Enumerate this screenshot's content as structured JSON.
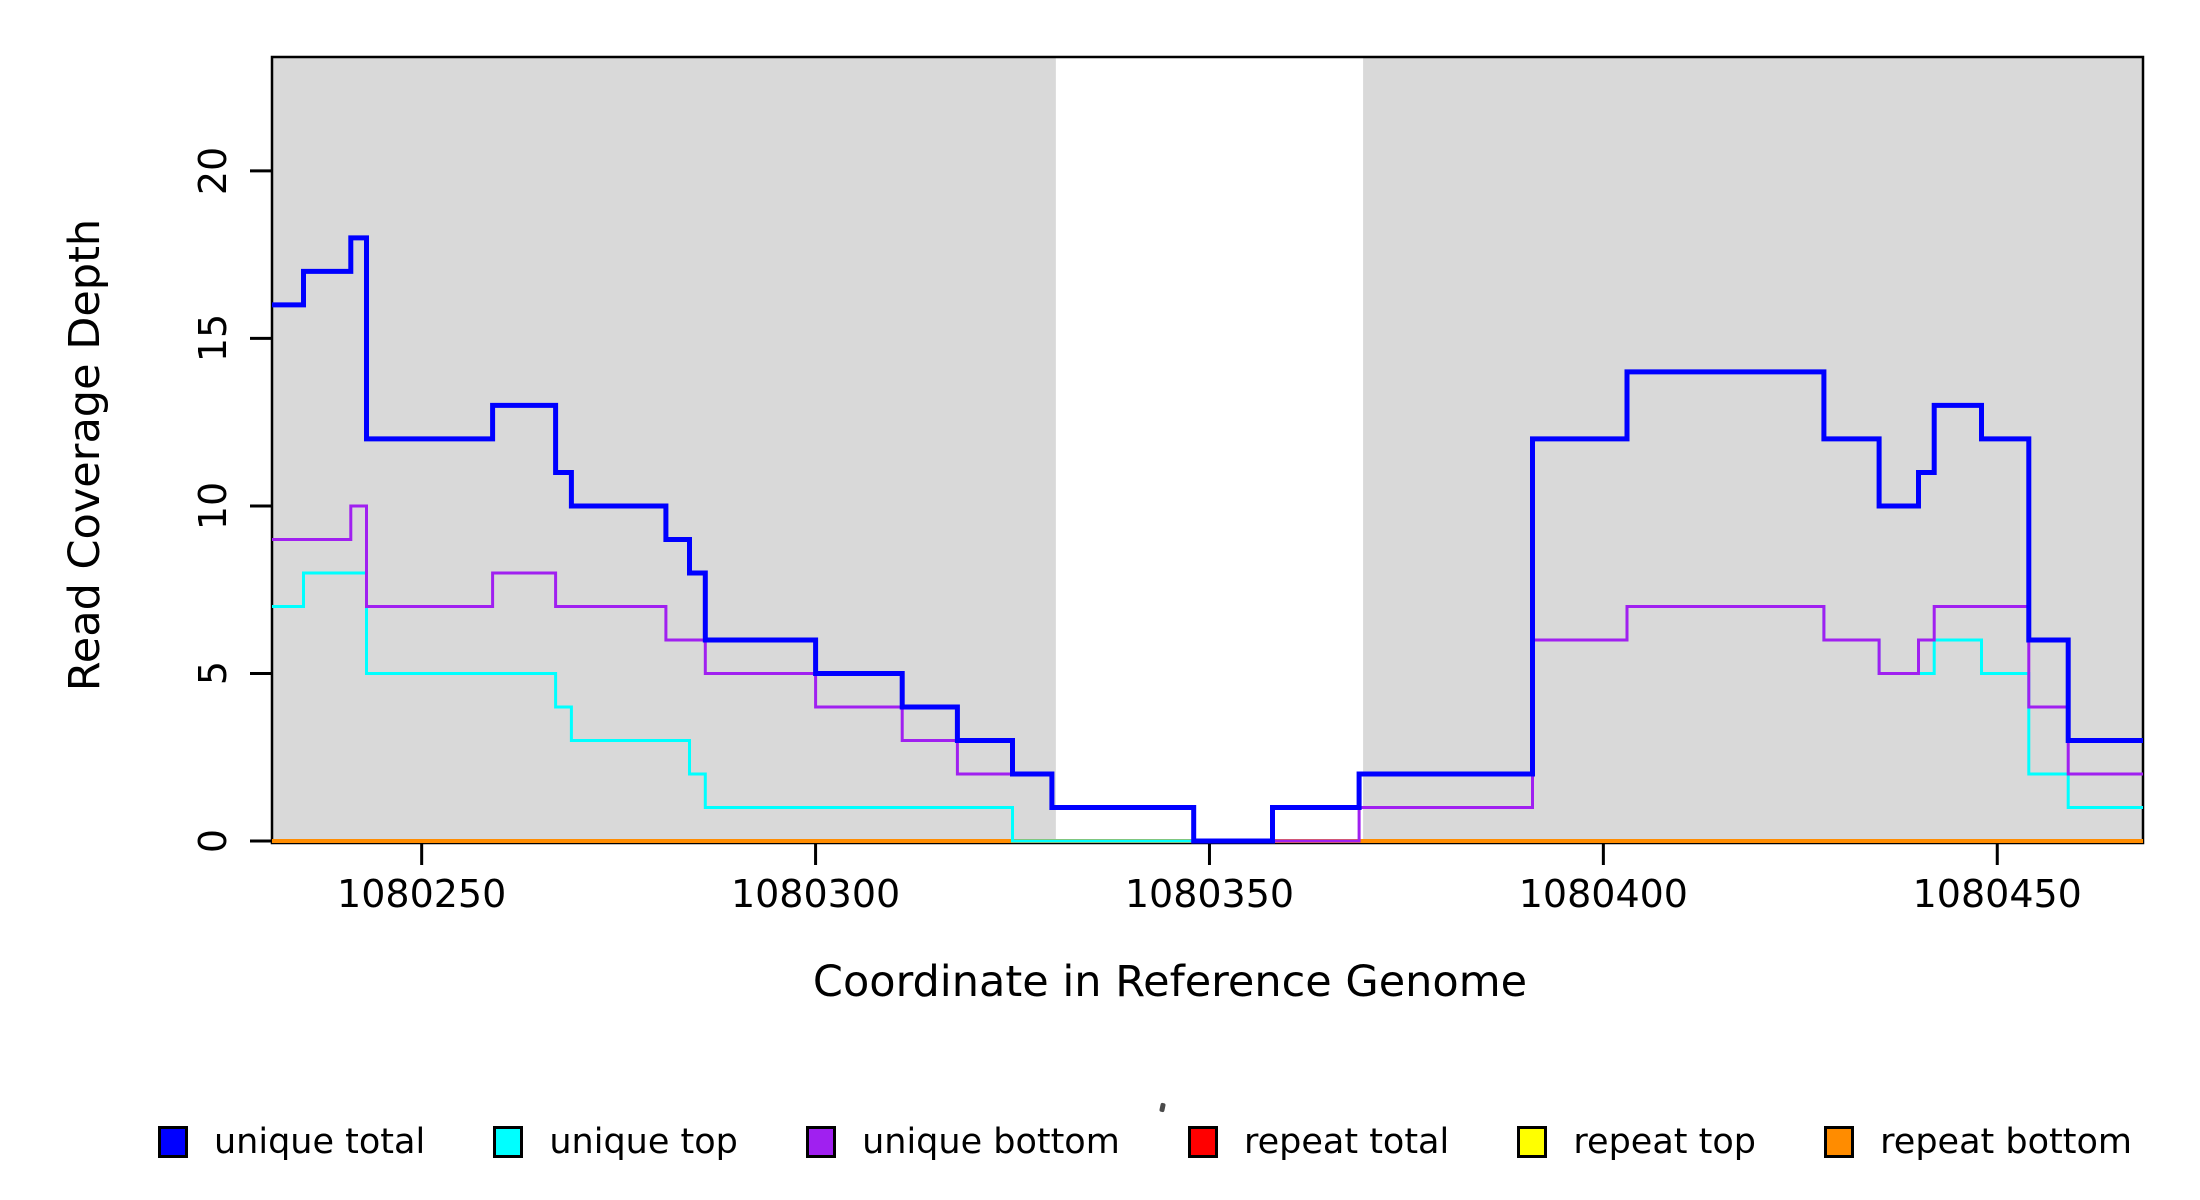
{
  "figure": {
    "x_axis_title": "Coordinate in Reference Genome",
    "y_axis_title": "Read Coverage Depth",
    "background_color": "#ffffff",
    "plot_shade_color": "#D9D9D9"
  },
  "legend": {
    "items": [
      {
        "label": "unique total",
        "color": "#0000FF"
      },
      {
        "label": "unique top",
        "color": "#00FFFF"
      },
      {
        "label": "unique bottom",
        "color": "#A020F0"
      },
      {
        "label": "repeat total",
        "color": "#FF0000"
      },
      {
        "label": "repeat top",
        "color": "#FFFF00"
      },
      {
        "label": "repeat bottom",
        "color": "#FF8C00"
      }
    ]
  },
  "chart_data": {
    "type": "line",
    "subtype": "step-coverage",
    "title": "",
    "xlabel": "Coordinate in Reference Genome",
    "ylabel": "Read Coverage Depth",
    "xlim": [
      1080231,
      1080468.5
    ],
    "ylim": [
      0,
      23.4
    ],
    "x_ticks": [
      1080250,
      1080300,
      1080350,
      1080400,
      1080450
    ],
    "y_ticks": [
      0,
      5,
      10,
      15,
      20
    ],
    "grid": false,
    "legend_position": "bottom",
    "shaded_regions": [
      {
        "from": 1080231,
        "to": 1080330.5
      },
      {
        "from": 1080369.5,
        "to": 1080468.5
      }
    ],
    "shade_color": "#D9D9D9",
    "draw_order": [
      3,
      4,
      5,
      1,
      2,
      0
    ],
    "series": [
      {
        "name": "unique total",
        "color": "#0000FF",
        "line_width": 5,
        "steps": [
          [
            1080231,
            16
          ],
          [
            1080235,
            17
          ],
          [
            1080241,
            18
          ],
          [
            1080243,
            12
          ],
          [
            1080259,
            13
          ],
          [
            1080267,
            11
          ],
          [
            1080269,
            10
          ],
          [
            1080281,
            9
          ],
          [
            1080284,
            8
          ],
          [
            1080286,
            6
          ],
          [
            1080300,
            5
          ],
          [
            1080311,
            4
          ],
          [
            1080318,
            3
          ],
          [
            1080325,
            2
          ],
          [
            1080330,
            1
          ],
          [
            1080348,
            0
          ],
          [
            1080358,
            1
          ],
          [
            1080369,
            2
          ],
          [
            1080391,
            12
          ],
          [
            1080403,
            14
          ],
          [
            1080428,
            12
          ],
          [
            1080435,
            10
          ],
          [
            1080440,
            11
          ],
          [
            1080442,
            13
          ],
          [
            1080448,
            12
          ],
          [
            1080454,
            6
          ],
          [
            1080459,
            3
          ]
        ]
      },
      {
        "name": "unique top",
        "color": "#00FFFF",
        "line_width": 3,
        "steps": [
          [
            1080231,
            7
          ],
          [
            1080235,
            8
          ],
          [
            1080243,
            5
          ],
          [
            1080267,
            4
          ],
          [
            1080269,
            3
          ],
          [
            1080284,
            2
          ],
          [
            1080286,
            1
          ],
          [
            1080325,
            0
          ],
          [
            1080358,
            1
          ],
          [
            1080391,
            6
          ],
          [
            1080403,
            7
          ],
          [
            1080428,
            6
          ],
          [
            1080435,
            5
          ],
          [
            1080442,
            6
          ],
          [
            1080448,
            5
          ],
          [
            1080454,
            2
          ],
          [
            1080459,
            1
          ]
        ]
      },
      {
        "name": "unique bottom",
        "color": "#A020F0",
        "line_width": 3,
        "steps": [
          [
            1080231,
            9
          ],
          [
            1080241,
            10
          ],
          [
            1080243,
            7
          ],
          [
            1080259,
            8
          ],
          [
            1080267,
            7
          ],
          [
            1080281,
            6
          ],
          [
            1080286,
            5
          ],
          [
            1080300,
            4
          ],
          [
            1080311,
            3
          ],
          [
            1080318,
            2
          ],
          [
            1080330,
            1
          ],
          [
            1080348,
            0
          ],
          [
            1080369,
            1
          ],
          [
            1080391,
            6
          ],
          [
            1080403,
            7
          ],
          [
            1080428,
            6
          ],
          [
            1080435,
            5
          ],
          [
            1080440,
            6
          ],
          [
            1080442,
            7
          ],
          [
            1080454,
            4
          ],
          [
            1080459,
            2
          ]
        ]
      },
      {
        "name": "repeat total",
        "color": "#FF0000",
        "line_width": 3,
        "steps": [
          [
            1080231,
            0
          ]
        ]
      },
      {
        "name": "repeat top",
        "color": "#FFFF00",
        "line_width": 3,
        "steps": [
          [
            1080231,
            0
          ]
        ]
      },
      {
        "name": "repeat bottom",
        "color": "#FF8C00",
        "line_width": 4,
        "steps": [
          [
            1080231,
            0
          ]
        ]
      }
    ]
  },
  "layout_note": ""
}
